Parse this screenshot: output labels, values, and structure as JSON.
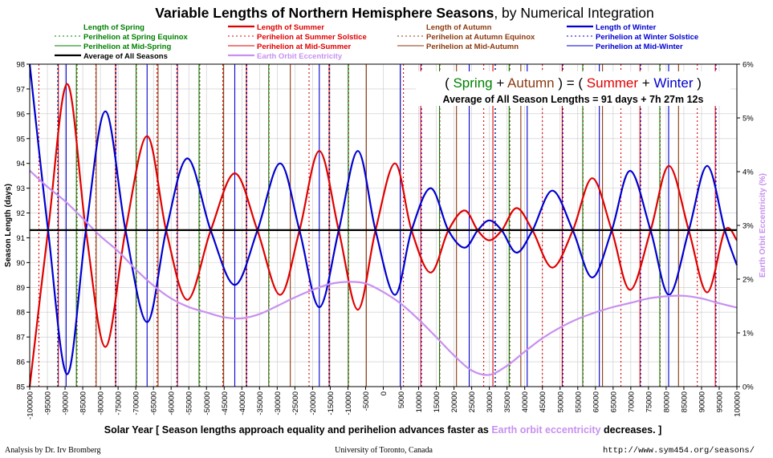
{
  "chart_data": {
    "type": "line",
    "title": "Variable Lengths of Northern Hemisphere Seasons",
    "title_suffix": ", by Numerical Integration",
    "xlabel_pre": "Solar Year [ Season lengths approach equality and perihelion advances faster as ",
    "xlabel_highlight": "Earth orbit eccentricity",
    "xlabel_post": " decreases. ]",
    "ylabel_left": "Season Length (days)",
    "ylabel_right": "Earth Orbit Eccentricity (%)",
    "x_range": [
      -100000,
      100000
    ],
    "x_ticks": [
      -100000,
      -95000,
      -90000,
      -85000,
      -80000,
      -75000,
      -70000,
      -65000,
      -60000,
      -55000,
      -50000,
      -45000,
      -40000,
      -35000,
      -30000,
      -25000,
      -20000,
      -15000,
      -10000,
      -5000,
      0,
      5000,
      10000,
      15000,
      20000,
      25000,
      30000,
      35000,
      40000,
      45000,
      50000,
      55000,
      60000,
      65000,
      70000,
      75000,
      80000,
      85000,
      90000,
      95000,
      100000
    ],
    "y_range": [
      85,
      98
    ],
    "y_ticks": [
      85,
      86,
      87,
      88,
      89,
      90,
      91,
      92,
      93,
      94,
      95,
      96,
      97,
      98
    ],
    "y2_range": [
      0,
      6
    ],
    "y2_ticks": [
      "0%",
      "1%",
      "2%",
      "3%",
      "4%",
      "5%",
      "6%"
    ],
    "grid": true,
    "colors": {
      "spring": "#008000",
      "summer": "#e00000",
      "autumn": "#8b3a0f",
      "winter": "#0000d0",
      "average": "#000000",
      "eccentricity": "#c890f0"
    },
    "legend": [
      {
        "label": "Length of Spring",
        "color": "#008000",
        "style": "title"
      },
      {
        "label": "Perihelion at Spring Equinox",
        "color": "#008000",
        "style": "dotted"
      },
      {
        "label": "Perihelion at Mid-Spring",
        "color": "#008000",
        "style": "solid"
      },
      {
        "label": "Average of All Seasons",
        "color": "#000000",
        "style": "thick"
      },
      {
        "label": "Length of Summer",
        "color": "#e00000",
        "style": "thick"
      },
      {
        "label": "Perihelion at Summer Solstice",
        "color": "#e00000",
        "style": "dotted"
      },
      {
        "label": "Perihelion at Mid-Summer",
        "color": "#e00000",
        "style": "solid"
      },
      {
        "label": "Earth Orbit Eccentricity",
        "color": "#c890f0",
        "style": "thick"
      },
      {
        "label": "Length of Autumn",
        "color": "#8b3a0f",
        "style": "title"
      },
      {
        "label": "Perihelion at Autumn Equinox",
        "color": "#8b3a0f",
        "style": "dotted"
      },
      {
        "label": "Perihelion at Mid-Autumn",
        "color": "#8b3a0f",
        "style": "solid"
      },
      {
        "label": "Length of Winter",
        "color": "#0000d0",
        "style": "thick"
      },
      {
        "label": "Perihelion at Winter Solstice",
        "color": "#0000d0",
        "style": "dotted"
      },
      {
        "label": "Perihelion at Mid-Winter",
        "color": "#0000d0",
        "style": "solid"
      }
    ],
    "annotation": {
      "line1": [
        {
          "text": "( ",
          "color": "#000000"
        },
        {
          "text": "Spring",
          "color": "#008000"
        },
        {
          "text": " + ",
          "color": "#000000"
        },
        {
          "text": "Autumn",
          "color": "#8b3a0f"
        },
        {
          "text": " ) = ( ",
          "color": "#000000"
        },
        {
          "text": "Summer",
          "color": "#e00000"
        },
        {
          "text": " + ",
          "color": "#000000"
        },
        {
          "text": "Winter",
          "color": "#0000d0"
        },
        {
          "text": " )",
          "color": "#000000"
        }
      ],
      "line2": "Average of All Season Lengths = 91 days + 7h 27m 12s"
    },
    "average_days": 91.31,
    "series": [
      {
        "name": "Length of Summer",
        "color": "#e00000",
        "points": [
          [
            -100000,
            85.0
          ],
          [
            -94800,
            91.3
          ],
          [
            -89400,
            97.2
          ],
          [
            -84100,
            91.3
          ],
          [
            -78600,
            86.6
          ],
          [
            -72900,
            91.3
          ],
          [
            -66800,
            95.1
          ],
          [
            -61400,
            91.3
          ],
          [
            -55400,
            88.5
          ],
          [
            -48800,
            91.3
          ],
          [
            -42000,
            93.6
          ],
          [
            -35600,
            91.3
          ],
          [
            -29200,
            88.7
          ],
          [
            -23700,
            91.3
          ],
          [
            -18100,
            94.5
          ],
          [
            -12600,
            91.3
          ],
          [
            -7200,
            88.1
          ],
          [
            -2200,
            91.3
          ],
          [
            3300,
            94.0
          ],
          [
            8000,
            91.3
          ],
          [
            13400,
            89.6
          ],
          [
            18400,
            91.3
          ],
          [
            23000,
            92.1
          ],
          [
            26700,
            91.3
          ],
          [
            30000,
            90.9
          ],
          [
            33500,
            91.3
          ],
          [
            37700,
            92.2
          ],
          [
            42200,
            91.3
          ],
          [
            47800,
            89.8
          ],
          [
            53600,
            91.3
          ],
          [
            59100,
            93.4
          ],
          [
            64600,
            91.3
          ],
          [
            69800,
            88.9
          ],
          [
            75600,
            91.3
          ],
          [
            80800,
            93.9
          ],
          [
            86400,
            91.3
          ],
          [
            91600,
            88.8
          ],
          [
            96600,
            91.3
          ],
          [
            100000,
            90.9
          ]
        ]
      },
      {
        "name": "Length of Winter",
        "color": "#0000d0",
        "points": [
          [
            -100000,
            98.0
          ],
          [
            -94800,
            91.3
          ],
          [
            -89400,
            85.5
          ],
          [
            -84100,
            91.3
          ],
          [
            -78600,
            96.1
          ],
          [
            -72900,
            91.3
          ],
          [
            -66800,
            87.6
          ],
          [
            -61400,
            91.3
          ],
          [
            -55400,
            94.2
          ],
          [
            -48800,
            91.3
          ],
          [
            -42000,
            89.1
          ],
          [
            -35600,
            91.3
          ],
          [
            -29200,
            94.0
          ],
          [
            -23700,
            91.3
          ],
          [
            -18100,
            88.2
          ],
          [
            -12600,
            91.3
          ],
          [
            -7200,
            94.5
          ],
          [
            -2200,
            91.3
          ],
          [
            3300,
            88.7
          ],
          [
            8000,
            91.3
          ],
          [
            13400,
            93.0
          ],
          [
            18400,
            91.3
          ],
          [
            23000,
            90.6
          ],
          [
            26700,
            91.3
          ],
          [
            30000,
            91.7
          ],
          [
            33500,
            91.3
          ],
          [
            37700,
            90.4
          ],
          [
            42200,
            91.3
          ],
          [
            47800,
            92.9
          ],
          [
            53600,
            91.3
          ],
          [
            59100,
            89.4
          ],
          [
            64600,
            91.3
          ],
          [
            69800,
            93.7
          ],
          [
            75600,
            91.3
          ],
          [
            80800,
            88.7
          ],
          [
            86400,
            91.3
          ],
          [
            91600,
            93.9
          ],
          [
            96600,
            91.3
          ],
          [
            100000,
            89.9
          ]
        ]
      },
      {
        "name": "Earth Orbit Eccentricity",
        "color": "#c890f0",
        "axis": "right",
        "points": [
          [
            -100000,
            4.02
          ],
          [
            -95000,
            3.72
          ],
          [
            -90000,
            3.45
          ],
          [
            -85000,
            3.13
          ],
          [
            -80000,
            2.8
          ],
          [
            -75000,
            2.52
          ],
          [
            -70000,
            2.18
          ],
          [
            -65000,
            1.88
          ],
          [
            -60000,
            1.64
          ],
          [
            -55000,
            1.48
          ],
          [
            -50000,
            1.38
          ],
          [
            -45000,
            1.29
          ],
          [
            -40000,
            1.27
          ],
          [
            -35000,
            1.35
          ],
          [
            -30000,
            1.5
          ],
          [
            -25000,
            1.66
          ],
          [
            -20000,
            1.8
          ],
          [
            -15000,
            1.91
          ],
          [
            -10000,
            1.95
          ],
          [
            -5000,
            1.92
          ],
          [
            0,
            1.76
          ],
          [
            5000,
            1.54
          ],
          [
            10000,
            1.25
          ],
          [
            15000,
            0.92
          ],
          [
            20000,
            0.58
          ],
          [
            25000,
            0.3
          ],
          [
            30000,
            0.22
          ],
          [
            35000,
            0.39
          ],
          [
            40000,
            0.65
          ],
          [
            45000,
            0.9
          ],
          [
            50000,
            1.1
          ],
          [
            55000,
            1.26
          ],
          [
            60000,
            1.38
          ],
          [
            65000,
            1.48
          ],
          [
            70000,
            1.56
          ],
          [
            75000,
            1.64
          ],
          [
            80000,
            1.68
          ],
          [
            85000,
            1.69
          ],
          [
            90000,
            1.64
          ],
          [
            95000,
            1.55
          ],
          [
            100000,
            1.47
          ]
        ]
      }
    ],
    "perihelion_markers": {
      "spring_dotted": [
        -92100,
        -75800,
        -58400,
        -38800,
        -15400,
        10700,
        31600,
        50700,
        72700,
        94000
      ],
      "spring_solid": [
        -86800,
        -69900,
        -52100,
        -32400,
        -9900,
        15900,
        35600,
        56400,
        78200
      ],
      "summer_dotted": [
        -97400,
        -81300,
        -64000,
        -45400,
        -21000,
        5700,
        28400,
        45000,
        67200,
        88800
      ],
      "summer_solid": [
        -91900,
        -75700,
        -58200,
        -38700,
        -15300,
        10600,
        31000,
        50600,
        72600,
        93900
      ],
      "autumn_dotted": [
        -86600,
        -69800,
        -51900,
        -32300,
        -9800,
        16000,
        35800,
        56500,
        78300
      ],
      "autumn_solid": [
        -81200,
        -63700,
        -45200,
        -26300,
        -4800,
        20700,
        38900,
        62000,
        83500
      ],
      "winter_dotted": [
        -92000,
        -75600,
        -58300,
        -38600,
        -15200,
        10800,
        31700,
        50800,
        72800,
        94100
      ],
      "winter_solid": [
        -89700,
        -66800,
        -42000,
        -18100,
        4800,
        24300,
        40700,
        61100,
        80700
      ]
    },
    "footer": {
      "left": "Analysis by Dr. Irv Bromberg",
      "center": "University of Toronto, Canada",
      "right": "http://www.sym454.org/seasons/"
    }
  }
}
